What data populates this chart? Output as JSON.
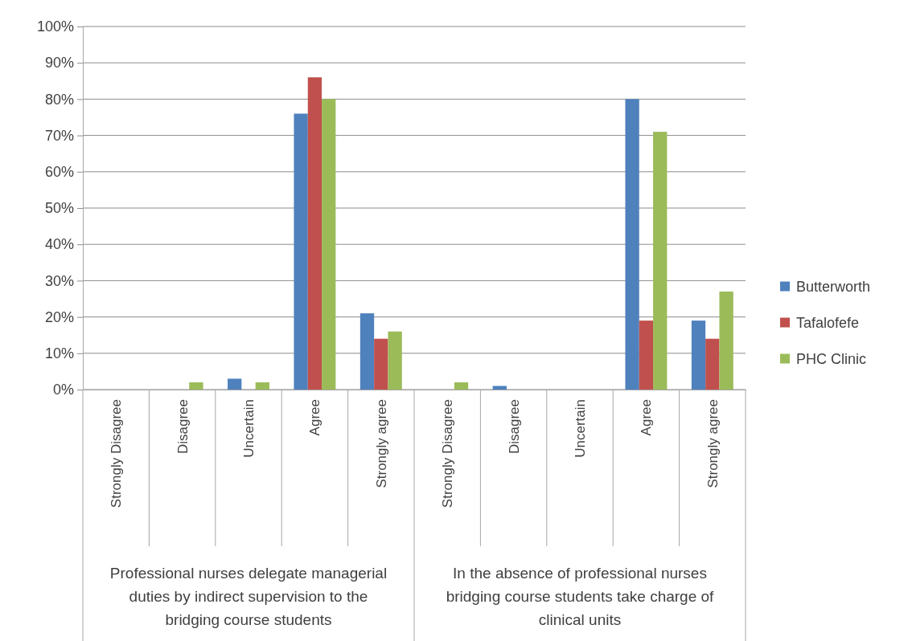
{
  "chart_data": {
    "type": "bar",
    "categories": [
      "Strongly Disagree",
      "Disagree",
      "Uncertain",
      "Agree",
      "Strongly agree",
      "Strongly Disagree",
      "Disagree",
      "Uncertain",
      "Agree",
      "Strongly agree"
    ],
    "series": [
      {
        "name": "Butterworth",
        "color": "#4f81bd",
        "values": [
          0,
          0,
          3,
          76,
          21,
          0,
          1,
          0,
          80,
          19
        ]
      },
      {
        "name": "Tafalofefe",
        "color": "#c0504d",
        "values": [
          0,
          0,
          0,
          86,
          14,
          0,
          0,
          0,
          19,
          14
        ]
      },
      {
        "name": "PHC Clinic",
        "color": "#9bbb59",
        "values": [
          0,
          2,
          2,
          80,
          16,
          2,
          0,
          0,
          71,
          27
        ]
      }
    ],
    "ylim": [
      0,
      100
    ],
    "yticks": [
      {
        "value": 0,
        "label": "0%"
      },
      {
        "value": 10,
        "label": "10%"
      },
      {
        "value": 20,
        "label": "20%"
      },
      {
        "value": 30,
        "label": "30%"
      },
      {
        "value": 40,
        "label": "40%"
      },
      {
        "value": 50,
        "label": "50%"
      },
      {
        "value": 60,
        "label": "60%"
      },
      {
        "value": 70,
        "label": "70%"
      },
      {
        "value": 80,
        "label": "80%"
      },
      {
        "value": 90,
        "label": "90%"
      },
      {
        "value": 100,
        "label": "100%"
      }
    ],
    "grid": "y",
    "legend": "right",
    "annotations": [
      "Professional nurses delegate managerial duties by indirect supervision to the bridging course students",
      "In the absence of professional nurses bridging course students take charge of clinical units"
    ]
  }
}
